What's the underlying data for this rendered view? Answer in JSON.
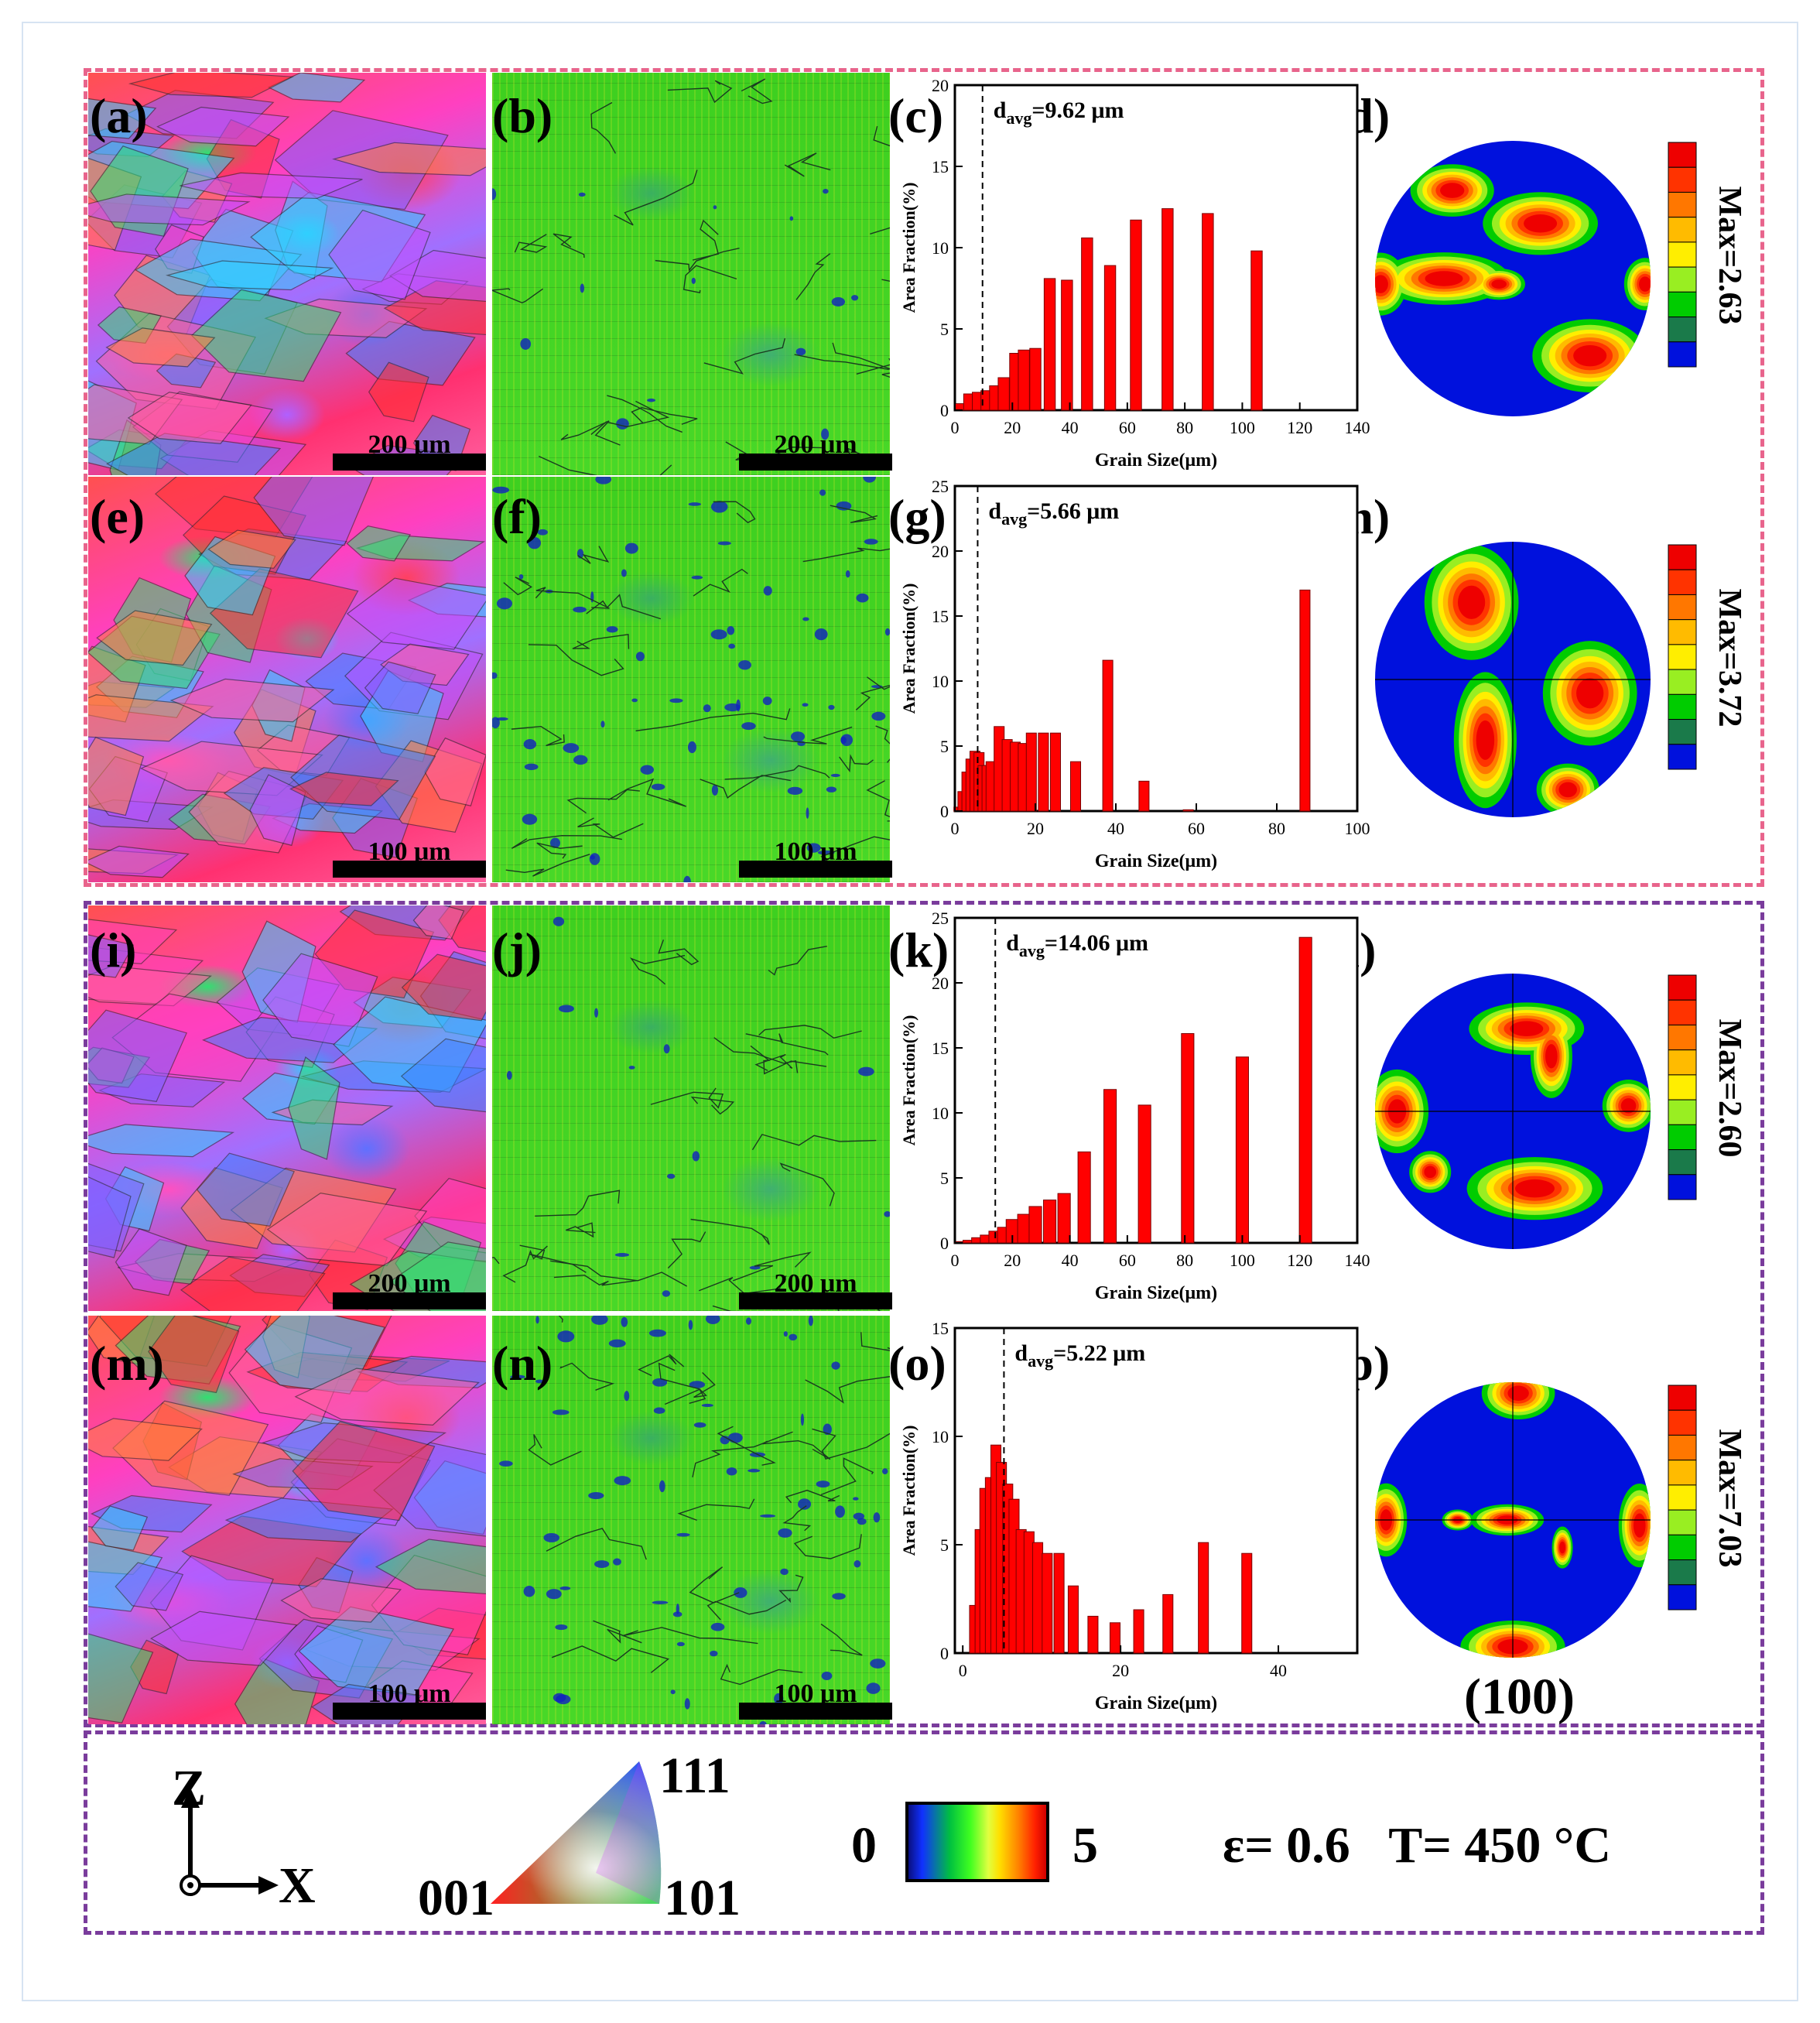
{
  "colors": {
    "upper_box": "#e8648c",
    "lower_box": "#7a3c9c",
    "bar": "#ff0000",
    "contour": [
      "#0011dd",
      "#1a7a4a",
      "#00cc00",
      "#99ee22",
      "#ffee00",
      "#ffbb00",
      "#ff7700",
      "#ff3300",
      "#ee0000"
    ]
  },
  "panels": {
    "a": "(a)",
    "b": "(b)",
    "c": "(c)",
    "d": "(d)",
    "e": "(e)",
    "f": "(f)",
    "g": "(g)",
    "h": "(h)",
    "i": "(i)",
    "j": "(j)",
    "k": "(k)",
    "l": "(l)",
    "m": "(m)",
    "n": "(n)",
    "o": "(o)",
    "p": "(p)"
  },
  "scalebars": {
    "r1": "200 μm",
    "r2": "100 μm",
    "r3": "200 μm",
    "r4": "100 μm"
  },
  "pole_figures": {
    "d": {
      "max": "Max=2.63"
    },
    "h": {
      "max": "Max=3.72"
    },
    "l": {
      "max": "Max=2.60"
    },
    "p": {
      "max": "Max=7.03"
    },
    "plane": "(100)"
  },
  "chart_data": [
    {
      "id": "c",
      "type": "bar",
      "ylabel": "Area Fraction(%)",
      "xlabel": "Grain Size(μm)",
      "davg_label": "d",
      "davg_sub": "avg",
      "davg_value": "=9.62 μm",
      "davg": 9.62,
      "xlim": [
        0,
        140
      ],
      "ylim": [
        0,
        20
      ],
      "xticks": [
        0,
        20,
        40,
        60,
        80,
        100,
        120,
        140
      ],
      "yticks": [
        0,
        5,
        10,
        15,
        20
      ],
      "x": [
        2,
        5,
        8,
        11,
        14,
        17,
        21,
        24,
        28,
        33,
        39,
        46,
        54,
        63,
        74,
        88,
        105,
        124,
        140
      ],
      "values": [
        0.4,
        1.0,
        1.1,
        1.2,
        1.5,
        2.0,
        3.5,
        3.7,
        3.8,
        8.1,
        8.0,
        10.6,
        8.9,
        11.7,
        12.4,
        12.1,
        9.8,
        0,
        0
      ]
    },
    {
      "id": "g",
      "type": "bar",
      "ylabel": "Area Fraction(%)",
      "xlabel": "Grain Size(μm)",
      "davg_label": "d",
      "davg_sub": "avg",
      "davg_value": "=5.66 μm",
      "davg": 5.66,
      "xlim": [
        0,
        100
      ],
      "ylim": [
        0,
        25
      ],
      "xticks": [
        0,
        20,
        40,
        60,
        80,
        100
      ],
      "yticks": [
        0,
        5,
        10,
        15,
        20,
        25
      ],
      "x": [
        1,
        2,
        3,
        4,
        5,
        6,
        7,
        8,
        9,
        11,
        13,
        15,
        17,
        19,
        22,
        25,
        30,
        38,
        47,
        58,
        87
      ],
      "values": [
        0.3,
        1.5,
        3.0,
        4.0,
        4.6,
        4.5,
        3.5,
        3.5,
        3.8,
        6.5,
        5.5,
        5.3,
        5.2,
        6.0,
        6.0,
        6.0,
        3.8,
        11.6,
        2.3,
        0.1,
        17.0
      ]
    },
    {
      "id": "k",
      "type": "bar",
      "ylabel": "Area Fraction(%)",
      "xlabel": "Grain Size(μm)",
      "davg_label": "d",
      "davg_sub": "avg",
      "davg_value": "=14.06 μm",
      "davg": 14.06,
      "xlim": [
        0,
        140
      ],
      "ylim": [
        0,
        25
      ],
      "xticks": [
        0,
        20,
        40,
        60,
        80,
        100,
        120,
        140
      ],
      "yticks": [
        0,
        5,
        10,
        15,
        20,
        25
      ],
      "x": [
        2,
        5,
        8,
        11,
        14,
        17,
        20,
        24,
        28,
        33,
        38,
        45,
        54,
        66,
        81,
        100,
        122
      ],
      "values": [
        0.1,
        0.2,
        0.4,
        0.6,
        0.9,
        1.2,
        1.8,
        2.2,
        2.8,
        3.3,
        3.8,
        7.0,
        11.8,
        10.6,
        16.1,
        14.3,
        23.5
      ]
    },
    {
      "id": "o",
      "type": "bar",
      "ylabel": "Area Fraction(%)",
      "xlabel": "Grain Size(μm)",
      "davg_label": "d",
      "davg_sub": "avg",
      "davg_value": "=5.22 μm",
      "davg": 5.22,
      "xlim": [
        -1,
        50
      ],
      "ylim": [
        0,
        15
      ],
      "xticks": [
        0,
        20,
        40
      ],
      "yticks": [
        0,
        5,
        10,
        15
      ],
      "x": [
        1.5,
        2.2,
        2.8,
        3.5,
        4.2,
        4.9,
        5.7,
        6.5,
        7.4,
        8.4,
        9.5,
        10.7,
        12.2,
        14.0,
        16.5,
        19.3,
        22.3,
        26.0,
        30.5,
        36.0,
        43.0
      ],
      "values": [
        2.2,
        5.7,
        7.6,
        8.1,
        9.6,
        8.8,
        7.8,
        7.1,
        5.7,
        5.6,
        5.1,
        4.6,
        4.6,
        3.1,
        1.7,
        1.4,
        2.0,
        2.7,
        5.1,
        4.6,
        0
      ]
    }
  ],
  "legend": {
    "axis_z": "Z",
    "axis_x": "X",
    "ipf_111": "111",
    "ipf_001": "001",
    "ipf_101": "101",
    "kam_min": "0",
    "kam_max": "5",
    "conditions": "ε= 0.6   T= 450 °C"
  }
}
